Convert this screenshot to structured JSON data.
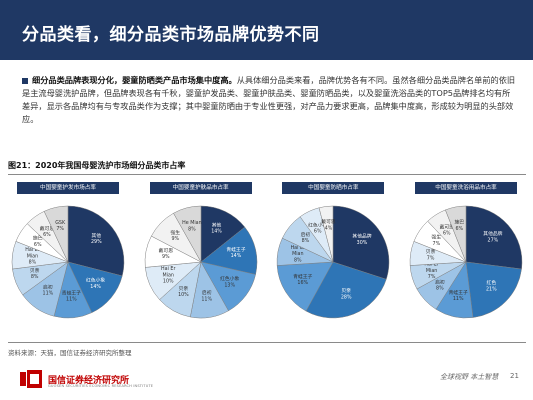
{
  "title": "分品类看，细分品类市场品牌优势不同",
  "bullet": {
    "lead": "细分品类品牌表现分化，婴童防晒类产品市场集中度高。",
    "body": "从具体细分品类来看，品牌优势各有不同。虽然各细分品类品牌名单前的依旧是主流母婴洗护品牌，但品牌表现各有千秋，婴童护发品类、婴童护肤品类、婴童防晒品类，以及婴童洗浴品类的TOP5品牌排名均有所差异，显示各品牌均有与专攻品类作为支撑；其中婴童防晒由于专业性更强，对产品力要求更高，品牌集中度高，形成较为明显的头部效应。"
  },
  "figure_title": "图21：2020年我国母婴洗护市场细分品类市占率",
  "source": "资料来源：天猫，国信证券经济研究所整理",
  "footer": {
    "logo_text": "国信证券经济研究所",
    "logo_sub": "GUOSEN SECURITIES ECONOMIC RESEARCH INSTITUTE",
    "slogan": "全球视野 本土智慧",
    "page": "21",
    "logo_color": "#c00000"
  },
  "chart_data": [
    {
      "type": "pie",
      "title": "中国婴童护发市场占率",
      "slices": [
        {
          "label": "其他",
          "value": 29,
          "color": "#1f3864"
        },
        {
          "label": "红色小象",
          "value": 14,
          "color": "#2e75b6"
        },
        {
          "label": "青蛙王子",
          "value": 11,
          "color": "#5b9bd5"
        },
        {
          "label": "启初",
          "value": 11,
          "color": "#9dc3e6"
        },
        {
          "label": "贝亲",
          "value": 8,
          "color": "#bdd7ee"
        },
        {
          "label": "Hai Er Mian",
          "value": 8,
          "color": "#deebf7"
        },
        {
          "label": "施巴",
          "value": 6,
          "color": "#ffffff"
        },
        {
          "label": "戴可思",
          "value": 6,
          "color": "#f2f2f2"
        },
        {
          "label": "GSK",
          "value": 7,
          "color": "#d9d9d9"
        }
      ]
    },
    {
      "type": "pie",
      "title": "中国婴童护肤品市占率",
      "slices": [
        {
          "label": "其他",
          "value": 14,
          "color": "#1f3864"
        },
        {
          "label": "青蛙王子",
          "value": 14,
          "color": "#2e75b6"
        },
        {
          "label": "红色小象",
          "value": 13,
          "color": "#5b9bd5"
        },
        {
          "label": "启初",
          "value": 11,
          "color": "#9dc3e6"
        },
        {
          "label": "贝亲",
          "value": 10,
          "color": "#bdd7ee"
        },
        {
          "label": "Hai Er Mian",
          "value": 10,
          "color": "#deebf7"
        },
        {
          "label": "戴可思",
          "value": 9,
          "color": "#ffffff"
        },
        {
          "label": "强生",
          "value": 9,
          "color": "#f2f2f2"
        },
        {
          "label": "He Mian",
          "value": 8,
          "color": "#d9d9d9"
        }
      ]
    },
    {
      "type": "pie",
      "title": "中国婴童防晒市占率",
      "slices": [
        {
          "label": "其他品牌",
          "value": 30,
          "color": "#1f3864"
        },
        {
          "label": "贝亲",
          "value": 28,
          "color": "#2e75b6"
        },
        {
          "label": "青蛙王子",
          "value": 16,
          "color": "#5b9bd5"
        },
        {
          "label": "Hai Er Mian",
          "value": 8,
          "color": "#9dc3e6"
        },
        {
          "label": "启初",
          "value": 8,
          "color": "#bdd7ee"
        },
        {
          "label": "红色小象",
          "value": 6,
          "color": "#deebf7"
        },
        {
          "label": "戴可思",
          "value": 4,
          "color": "#f2f2f2"
        }
      ]
    },
    {
      "type": "pie",
      "title": "中国婴童洗浴用品市占率",
      "slices": [
        {
          "label": "其他品牌",
          "value": 27,
          "color": "#1f3864"
        },
        {
          "label": "红色",
          "value": 21,
          "color": "#2e75b6"
        },
        {
          "label": "青蛙王子",
          "value": 11,
          "color": "#5b9bd5"
        },
        {
          "label": "启初",
          "value": 8,
          "color": "#9dc3e6"
        },
        {
          "label": "Hai Er Mian",
          "value": 7,
          "color": "#bdd7ee"
        },
        {
          "label": "贝亲",
          "value": 7,
          "color": "#deebf7"
        },
        {
          "label": "强生",
          "value": 7,
          "color": "#ffffff"
        },
        {
          "label": "戴可思",
          "value": 6,
          "color": "#f2f2f2"
        },
        {
          "label": "施巴",
          "value": 6,
          "color": "#d9d9d9"
        }
      ]
    }
  ]
}
